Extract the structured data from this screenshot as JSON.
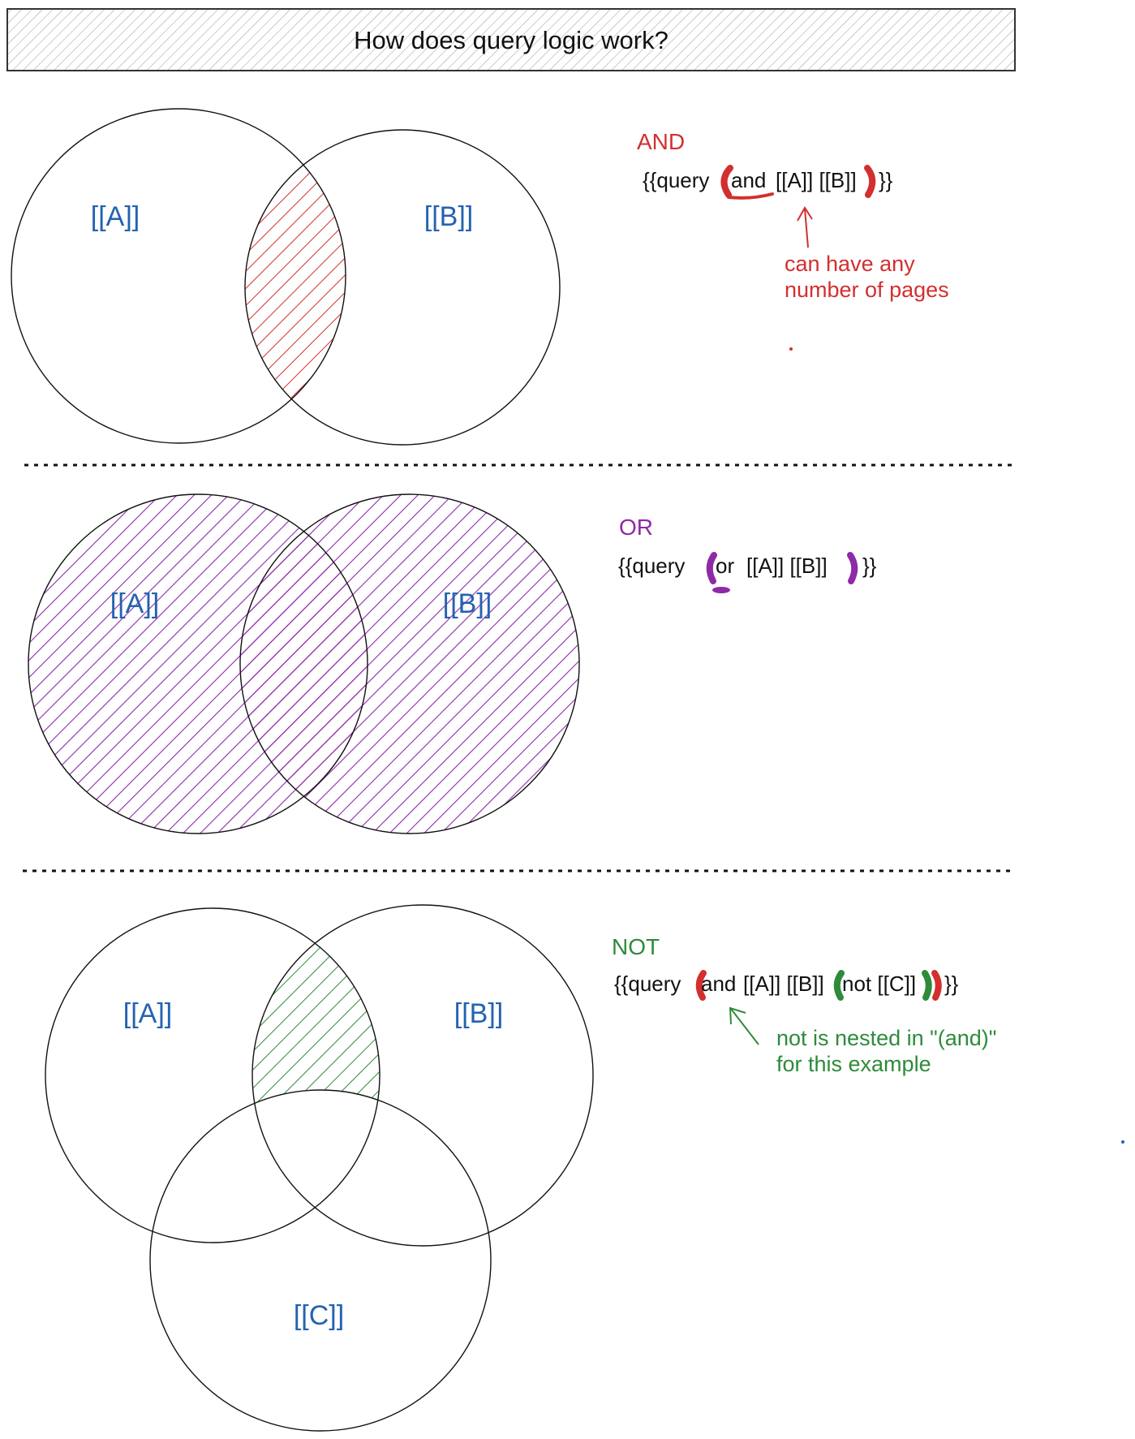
{
  "title": "How does query logic work?",
  "colors": {
    "and": "#d32f2f",
    "or": "#8e2aa8",
    "not": "#2e8b3a",
    "page_label": "#2463b0",
    "ink": "#111111"
  },
  "sections": {
    "and": {
      "heading": "AND",
      "query_open": "{{query",
      "query_keyword": "and",
      "query_rest": "[[A]] [[B]]",
      "query_close": "}}",
      "note_line1": "can have any",
      "note_line2": "number of pages",
      "circle_a": "[[A]]",
      "circle_b": "[[B]]"
    },
    "or": {
      "heading": "OR",
      "query_open": "{{query",
      "query_keyword": "or",
      "query_rest": "[[A]] [[B]]",
      "query_close": "}}",
      "circle_a": "[[A]]",
      "circle_b": "[[B]]"
    },
    "not": {
      "heading": "NOT",
      "query_open": "{{query",
      "query_keyword": "and",
      "query_rest": "[[A]] [[B]]",
      "query_not": "not [[C]]",
      "query_close": "}}",
      "note_line1": "not is nested in \"(and)\"",
      "note_line2": "for this example",
      "circle_a": "[[A]]",
      "circle_b": "[[B]]",
      "circle_c": "[[C]]"
    }
  }
}
